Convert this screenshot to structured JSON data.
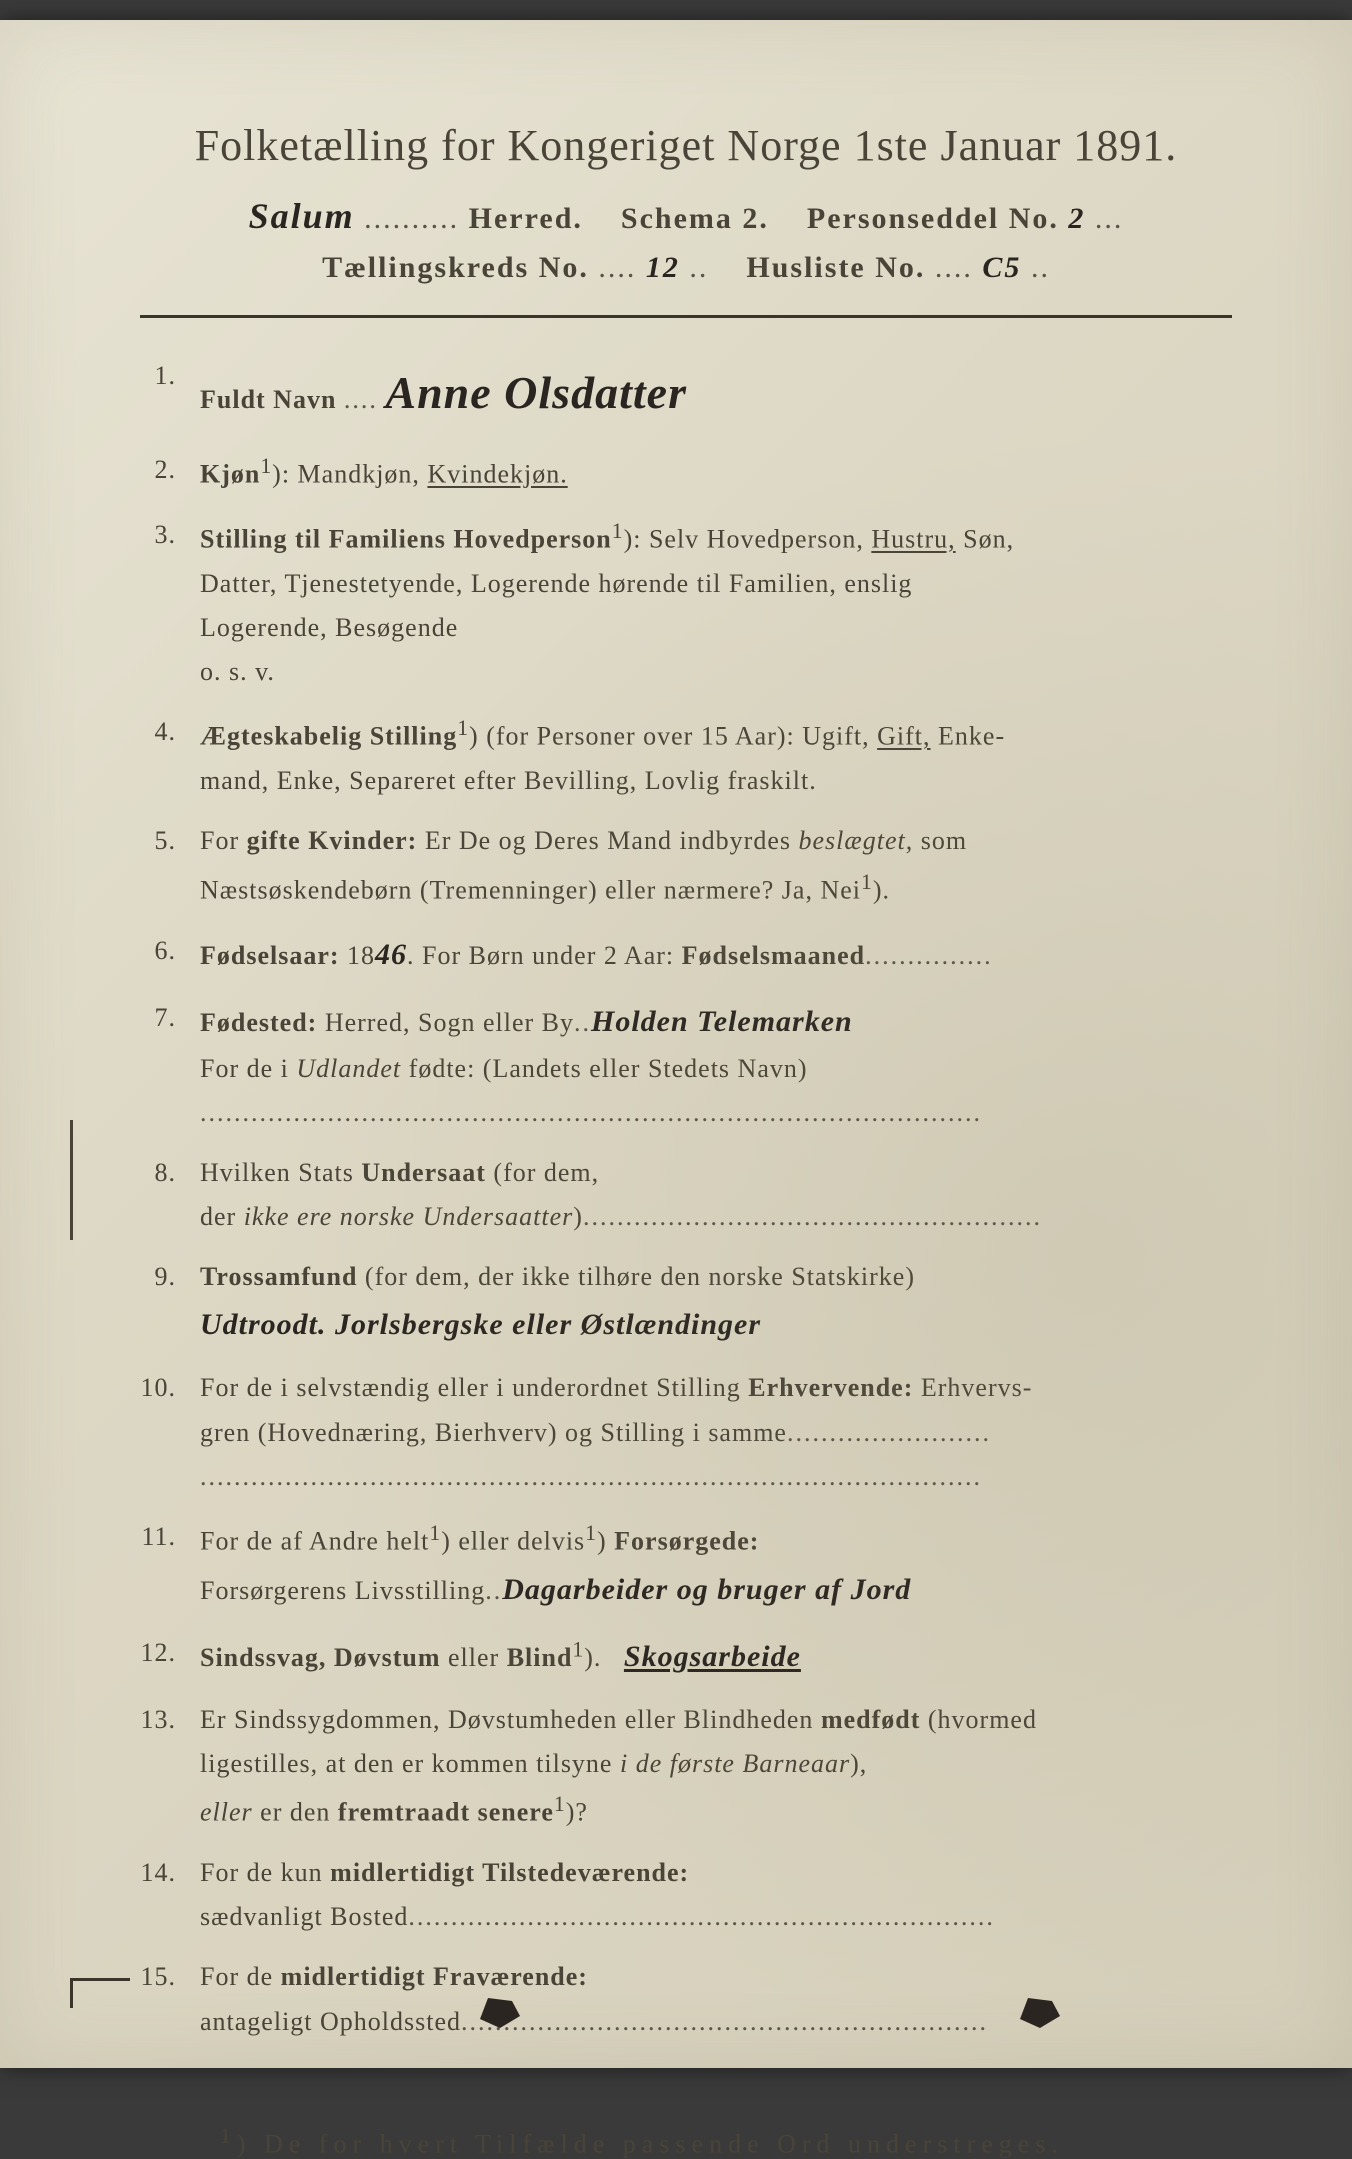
{
  "header": {
    "main_title": "Folketælling for Kongeriget Norge 1ste Januar 1891.",
    "herred_hw": "Salum",
    "herred_label": "Herred.",
    "schema": "Schema 2.",
    "personseddel_label": "Personseddel No.",
    "personseddel_no": "2",
    "tkreds_label": "Tællingskreds No.",
    "tkreds_no": "12",
    "husliste_label": "Husliste No.",
    "husliste_no": "C5"
  },
  "items": {
    "n1": "1.",
    "q1_label": "Fuldt Navn",
    "q1_hw": "Anne Olsdatter",
    "n2": "2.",
    "q2_label": "Kjøn",
    "q2_sup": "1",
    "q2_text": "): Mandkjøn, ",
    "q2_ul": "Kvindekjøn.",
    "n3": "3.",
    "q3_label": "Stilling til Familiens Hovedperson",
    "q3_sup": "1",
    "q3_text1": "): Selv Hovedperson, ",
    "q3_ul": "Hustru,",
    "q3_text2": " Søn,",
    "q3_line2": "Datter, Tjenestetyende, Logerende hørende til Familien, enslig",
    "q3_line3": "Logerende, Besøgende",
    "q3_line4": "o. s. v.",
    "n4": "4.",
    "q4_label": "Ægteskabelig Stilling",
    "q4_sup": "1",
    "q4_text1": ") (for Personer over 15 Aar): Ugift, ",
    "q4_ul": "Gift,",
    "q4_text2": " Enke-",
    "q4_line2": "mand, Enke, Separeret efter Bevilling, Lovlig fraskilt.",
    "n5": "5.",
    "q5_text1": "For ",
    "q5_label": "gifte Kvinder:",
    "q5_text2": " Er De og Deres Mand indbyrdes ",
    "q5_ital": "beslægtet,",
    "q5_text3": " som",
    "q5_line2": "Næstsøskendebørn (Tremenninger) eller nærmere? Ja, Nei",
    "q5_sup": "1",
    "q5_end": ").",
    "n6": "6.",
    "q6_label": "Fødselsaar:",
    "q6_pre": " 18",
    "q6_hw": "46",
    "q6_text2": ". For Børn under 2 Aar: ",
    "q6_label2": "Fødselsmaaned",
    "n7": "7.",
    "q7_label": "Fødested:",
    "q7_text": " Herred, Sogn eller By",
    "q7_hw": "Holden  Telemarken",
    "q7_line2a": "For de i ",
    "q7_line2ital": "Udlandet",
    "q7_line2b": " fødte: (Landets eller Stedets Navn)",
    "n8": "8.",
    "q8_text1": "Hvilken Stats ",
    "q8_label": "Undersaat",
    "q8_text2": " (for dem,",
    "q8_line2a": "der ",
    "q8_line2ital": "ikke ere norske Undersaatter",
    "q8_line2b": ")",
    "n9": "9.",
    "q9_label": "Trossamfund",
    "q9_text": " (for dem, der ikke tilhøre den norske Statskirke)",
    "q9_hw": "Udtroodt. Jorlsbergske eller Østlændinger",
    "n10": "10.",
    "q10_text1": "For de i selvstændig eller i underordnet Stilling ",
    "q10_label": "Erhvervende:",
    "q10_text2": " Erhvervs-",
    "q10_line2": "gren (Hovednæring, Bierhverv) og Stilling i samme",
    "n11": "11.",
    "q11_text1": "For de af Andre helt",
    "q11_sup1": "1",
    "q11_text2": ") eller delvis",
    "q11_sup2": "1",
    "q11_text3": ") ",
    "q11_label": "Forsørgede:",
    "q11_line2": "Forsørgerens Livsstilling",
    "q11_hw": "Dagarbeider og bruger af Jord",
    "n12": "12.",
    "q12_label": "Sindssvag, Døvstum",
    "q12_text": " eller ",
    "q12_label2": "Blind",
    "q12_sup": "1",
    "q12_end": ").",
    "q12_hw": "Skogsarbeide",
    "n13": "13.",
    "q13_text1": "Er Sindssygdommen, Døvstumheden eller Blindheden ",
    "q13_label": "medfødt",
    "q13_text2": " (hvormed",
    "q13_line2a": "ligestilles, at den er kommen tilsyne ",
    "q13_line2ital": "i de første Barneaar",
    "q13_line2b": "),",
    "q13_line3a": "eller",
    "q13_line3b": " er den ",
    "q13_line3bold": "fremtraadt senere",
    "q13_sup": "1",
    "q13_end": ")?",
    "n14": "14.",
    "q14_text": "For de kun ",
    "q14_label": "midlertidigt Tilstedeværende:",
    "q14_line2": "sædvanligt Bosted",
    "n15": "15.",
    "q15_text": "For de ",
    "q15_label": "midlertidigt Fraværende:",
    "q15_line2": "antageligt Opholdssted"
  },
  "footnote": {
    "sup": "1",
    "text": ") De for hvert Tilfælde passende Ord understreges."
  }
}
